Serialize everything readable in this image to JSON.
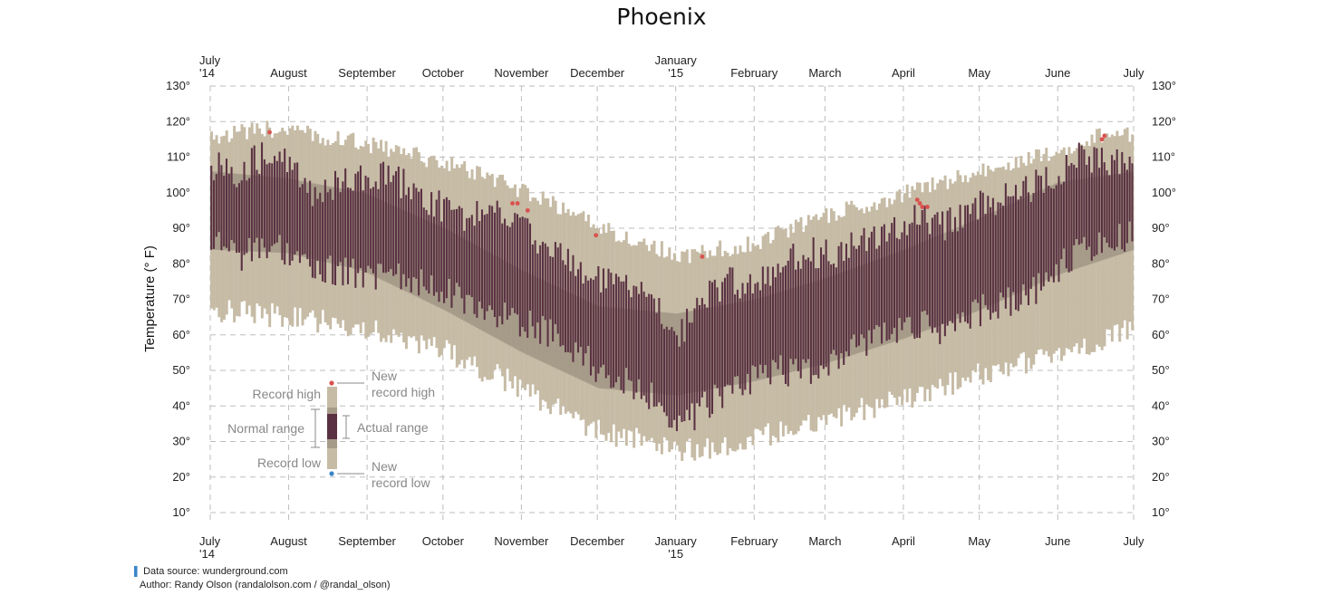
{
  "chart_data": {
    "type": "bar",
    "title": "Phoenix",
    "ylabel": "Temperature (° F)",
    "ylim": [
      5,
      132
    ],
    "ytick_values": [
      10,
      20,
      30,
      40,
      50,
      60,
      70,
      80,
      90,
      100,
      110,
      120,
      130
    ],
    "ytick_labels": [
      "10°",
      "20°",
      "30°",
      "40°",
      "50°",
      "60°",
      "70°",
      "80°",
      "90°",
      "100°",
      "110°",
      "120°",
      "130°"
    ],
    "months": [
      {
        "label": "July",
        "sub": "'14",
        "day": 0
      },
      {
        "label": "August",
        "sub": "",
        "day": 31
      },
      {
        "label": "September",
        "sub": "",
        "day": 62
      },
      {
        "label": "October",
        "sub": "",
        "day": 92
      },
      {
        "label": "November",
        "sub": "",
        "day": 123
      },
      {
        "label": "December",
        "sub": "",
        "day": 153
      },
      {
        "label": "January",
        "sub": "'15",
        "day": 184
      },
      {
        "label": "February",
        "sub": "",
        "day": 215
      },
      {
        "label": "March",
        "sub": "",
        "day": 243
      },
      {
        "label": "April",
        "sub": "",
        "day": 274
      },
      {
        "label": "May",
        "sub": "",
        "day": 304
      },
      {
        "label": "June",
        "sub": "",
        "day": 335
      },
      {
        "label": "July",
        "sub": "",
        "day": 365
      }
    ],
    "series_keyframes": {
      "record_high": [
        [
          0,
          116
        ],
        [
          25,
          118
        ],
        [
          60,
          114
        ],
        [
          95,
          108
        ],
        [
          125,
          100
        ],
        [
          155,
          90
        ],
        [
          185,
          82
        ],
        [
          215,
          86
        ],
        [
          245,
          94
        ],
        [
          275,
          100
        ],
        [
          305,
          106
        ],
        [
          335,
          112
        ],
        [
          360,
          118
        ],
        [
          365,
          116
        ]
      ],
      "record_low": [
        [
          0,
          67
        ],
        [
          30,
          65
        ],
        [
          60,
          62
        ],
        [
          90,
          56
        ],
        [
          120,
          46
        ],
        [
          150,
          34
        ],
        [
          185,
          27
        ],
        [
          215,
          31
        ],
        [
          245,
          37
        ],
        [
          275,
          42
        ],
        [
          305,
          49
        ],
        [
          335,
          55
        ],
        [
          365,
          62
        ]
      ],
      "normal_high": [
        [
          0,
          106
        ],
        [
          30,
          104
        ],
        [
          60,
          100
        ],
        [
          92,
          90
        ],
        [
          123,
          78
        ],
        [
          153,
          68
        ],
        [
          184,
          66
        ],
        [
          215,
          70
        ],
        [
          243,
          76
        ],
        [
          274,
          84
        ],
        [
          304,
          93
        ],
        [
          335,
          103
        ],
        [
          365,
          106
        ]
      ],
      "normal_low": [
        [
          0,
          84
        ],
        [
          30,
          83
        ],
        [
          60,
          78
        ],
        [
          92,
          67
        ],
        [
          123,
          55
        ],
        [
          153,
          45
        ],
        [
          184,
          43
        ],
        [
          215,
          47
        ],
        [
          243,
          52
        ],
        [
          274,
          59
        ],
        [
          304,
          67
        ],
        [
          335,
          77
        ],
        [
          365,
          84
        ]
      ],
      "actual_high": [
        [
          0,
          108
        ],
        [
          10,
          106
        ],
        [
          25,
          112
        ],
        [
          40,
          100
        ],
        [
          55,
          103
        ],
        [
          70,
          105
        ],
        [
          85,
          98
        ],
        [
          100,
          93
        ],
        [
          115,
          95
        ],
        [
          125,
          89
        ],
        [
          135,
          84
        ],
        [
          150,
          76
        ],
        [
          165,
          73
        ],
        [
          175,
          70
        ],
        [
          185,
          60
        ],
        [
          195,
          71
        ],
        [
          205,
          75
        ],
        [
          215,
          73
        ],
        [
          225,
          79
        ],
        [
          235,
          84
        ],
        [
          245,
          82
        ],
        [
          255,
          86
        ],
        [
          270,
          90
        ],
        [
          280,
          93
        ],
        [
          290,
          91
        ],
        [
          305,
          97
        ],
        [
          320,
          100
        ],
        [
          332,
          104
        ],
        [
          342,
          110
        ],
        [
          352,
          109
        ],
        [
          365,
          107
        ]
      ],
      "actual_low": [
        [
          0,
          86
        ],
        [
          10,
          82
        ],
        [
          25,
          85
        ],
        [
          40,
          79
        ],
        [
          55,
          77
        ],
        [
          70,
          76
        ],
        [
          85,
          75
        ],
        [
          100,
          70
        ],
        [
          115,
          66
        ],
        [
          125,
          63
        ],
        [
          135,
          60
        ],
        [
          150,
          52
        ],
        [
          165,
          46
        ],
        [
          175,
          42
        ],
        [
          185,
          34
        ],
        [
          195,
          40
        ],
        [
          205,
          45
        ],
        [
          215,
          48
        ],
        [
          225,
          50
        ],
        [
          235,
          49
        ],
        [
          245,
          52
        ],
        [
          255,
          57
        ],
        [
          270,
          60
        ],
        [
          280,
          63
        ],
        [
          290,
          61
        ],
        [
          305,
          67
        ],
        [
          320,
          70
        ],
        [
          332,
          76
        ],
        [
          342,
          84
        ],
        [
          352,
          86
        ],
        [
          365,
          88
        ]
      ]
    },
    "new_record_highs": [
      {
        "day": 23,
        "temp": 117
      },
      {
        "day": 119,
        "temp": 97
      },
      {
        "day": 121,
        "temp": 97
      },
      {
        "day": 125,
        "temp": 95
      },
      {
        "day": 152,
        "temp": 88
      },
      {
        "day": 194,
        "temp": 82
      },
      {
        "day": 279,
        "temp": 98
      },
      {
        "day": 280,
        "temp": 97
      },
      {
        "day": 281,
        "temp": 96
      },
      {
        "day": 283,
        "temp": 96
      },
      {
        "day": 352,
        "temp": 115
      },
      {
        "day": 353,
        "temp": 116
      }
    ],
    "new_record_lows": [],
    "colors": {
      "record": "#c6bba5",
      "normal": "#a69b89",
      "actual": "#5a3142",
      "new_high": "#d9524f",
      "new_low": "#3a86c8",
      "grid": "#bdbdbd"
    },
    "legend": {
      "record_high": "Record high",
      "normal_range": "Normal range",
      "record_low": "Record low",
      "actual_range": "Actual range",
      "new_record_high_1": "New",
      "new_record_high_2": "record high",
      "new_record_low_1": "New",
      "new_record_low_2": "record low"
    }
  },
  "footer": {
    "source": "Data source: wunderground.com",
    "author": "Author: Randy Olson (randalolson.com / @randal_olson)"
  }
}
